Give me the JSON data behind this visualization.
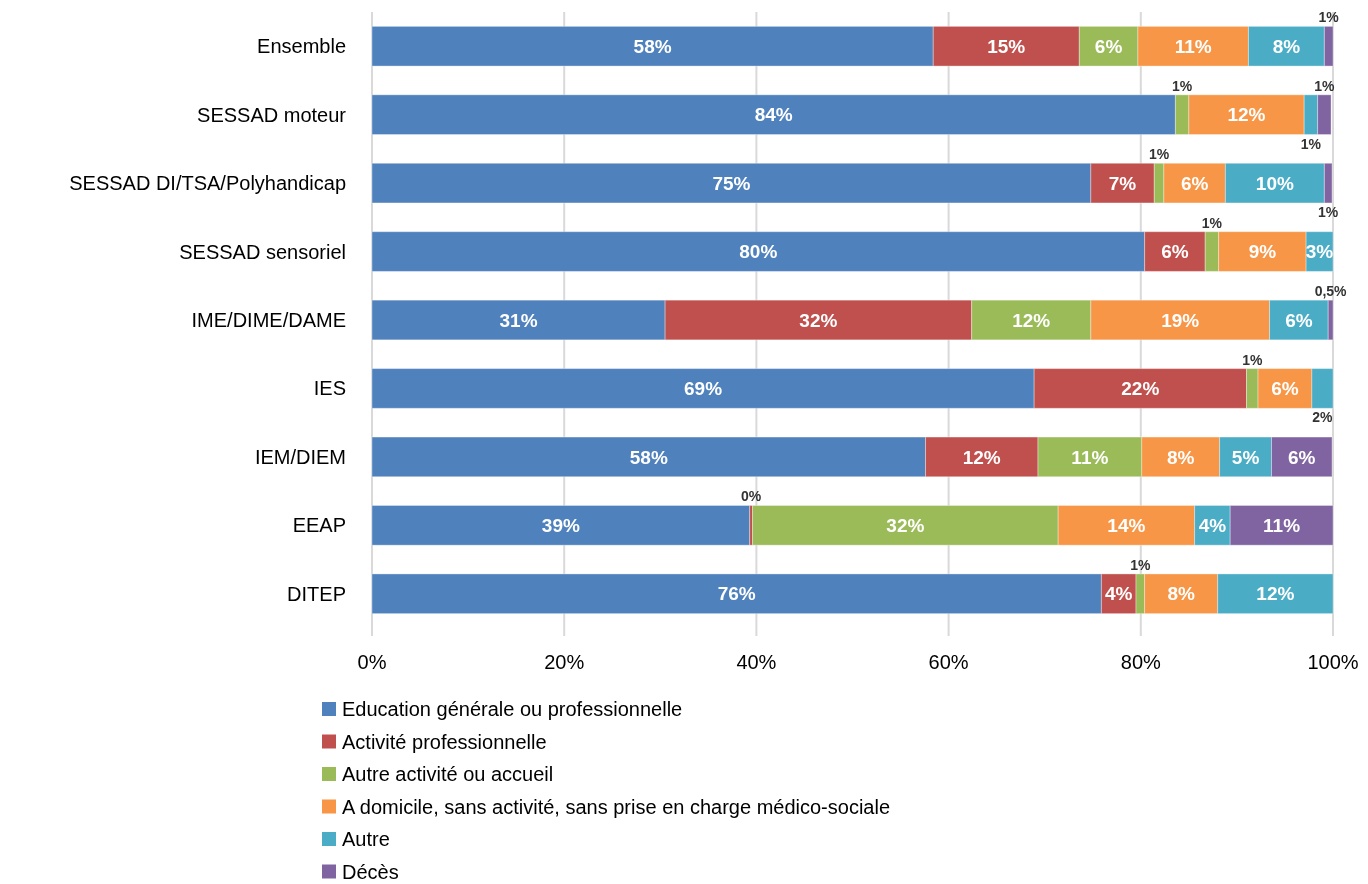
{
  "chart_data": {
    "type": "bar",
    "orientation": "horizontal",
    "stacked": true,
    "categories": [
      "Ensemble",
      "SESSAD moteur",
      "SESSAD DI/TSA/Polyhandicap",
      "SESSAD sensoriel",
      "IME/DIME/DAME",
      "IES",
      "IEM/DIEM",
      "EEAP",
      "DITEP"
    ],
    "series": [
      {
        "name": "Education générale ou professionnelle",
        "color": "#4f81bd",
        "values": [
          58.4,
          83.6,
          74.8,
          80.4,
          30.5,
          68.9,
          57.6,
          39.3,
          75.9
        ],
        "value_labels": [
          "58%",
          "84%",
          "75%",
          "80%",
          "31%",
          "69%",
          "58%",
          "39%",
          "76%"
        ]
      },
      {
        "name": "Activité professionnelle",
        "color": "#c0504d",
        "values": [
          15.2,
          0,
          6.6,
          6.3,
          31.9,
          22.1,
          11.7,
          0.3,
          3.6
        ],
        "value_labels": [
          "15%",
          null,
          "7%",
          "6%",
          "32%",
          "22%",
          "12%",
          "0%",
          "4%"
        ]
      },
      {
        "name": "Autre activité ou accueil",
        "color": "#9bbb59",
        "values": [
          6.1,
          1.4,
          1.0,
          1.4,
          12.4,
          1.2,
          10.8,
          31.8,
          0.9
        ],
        "value_labels": [
          "6%",
          "1%",
          "1%",
          "1%",
          "12%",
          "1%",
          "11%",
          "32%",
          "1%"
        ]
      },
      {
        "name": "A domicile, sans activité, sans prise en charge médico-sociale",
        "color": "#f79646",
        "values": [
          11.5,
          12.0,
          6.4,
          9.1,
          18.6,
          5.6,
          8.1,
          14.2,
          7.6
        ],
        "value_labels": [
          "11%",
          "12%",
          "6%",
          "9%",
          "19%",
          "6%",
          "8%",
          "14%",
          "8%"
        ]
      },
      {
        "name": "Autre",
        "color": "#4bacc6",
        "values": [
          7.9,
          1.4,
          10.3,
          2.8,
          6.1,
          2.2,
          5.4,
          3.7,
          12.0
        ],
        "value_labels": [
          "8%",
          "1%",
          "10%",
          "3%",
          "6%",
          "2%",
          "5%",
          "4%",
          "12%"
        ]
      },
      {
        "name": "Décès",
        "color": "#8064a2",
        "values": [
          0.9,
          1.4,
          0.8,
          0,
          0.5,
          0,
          6.3,
          10.7,
          0
        ],
        "value_labels": [
          "1%",
          "1%",
          "1%",
          null,
          "0,5%",
          null,
          "6%",
          "11%",
          null
        ]
      }
    ],
    "xlim": [
      0,
      100
    ],
    "xticks": [
      {
        "value": 0,
        "label": "0%"
      },
      {
        "value": 20,
        "label": "20%"
      },
      {
        "value": 40,
        "label": "40%"
      },
      {
        "value": 60,
        "label": "60%"
      },
      {
        "value": 80,
        "label": "80%"
      },
      {
        "value": 100,
        "label": "100%"
      }
    ],
    "grid": "x",
    "legend": "bottom"
  }
}
